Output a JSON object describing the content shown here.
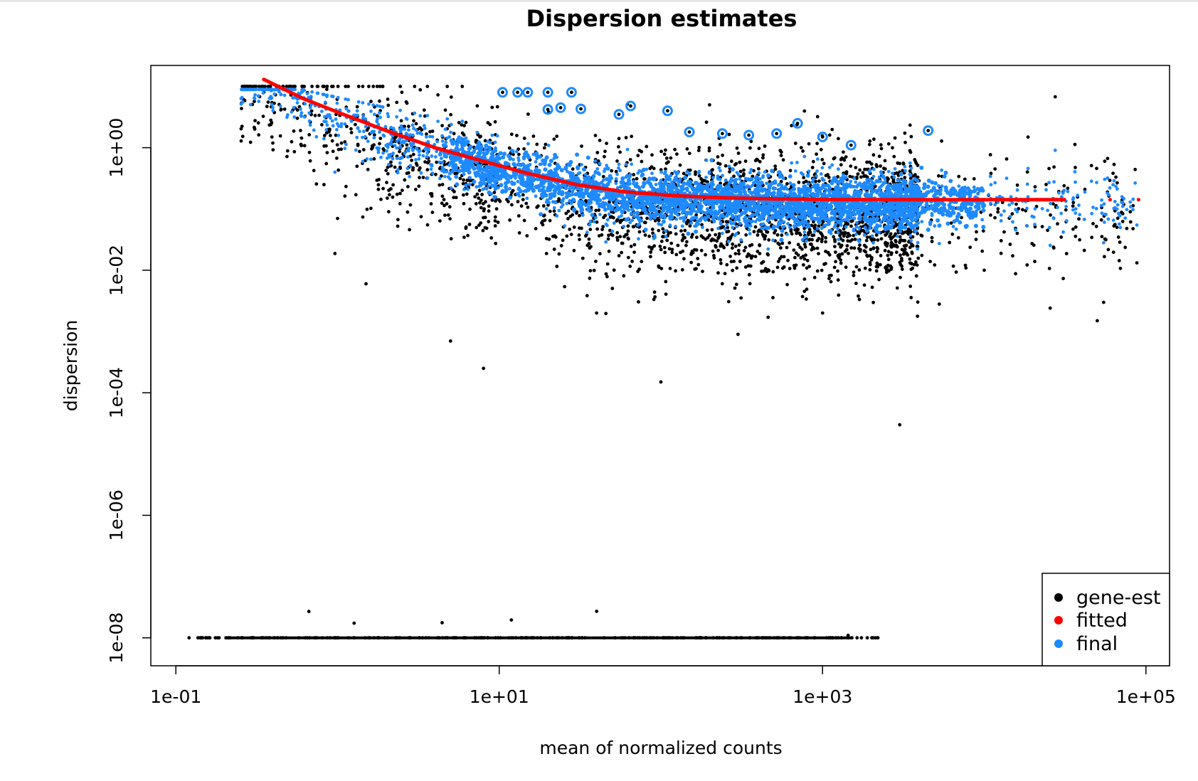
{
  "chart_data": {
    "type": "scatter",
    "title": "Dispersion estimates",
    "xlabel": "mean of normalized counts",
    "ylabel": "dispersion",
    "x_scale": "log10",
    "y_scale": "log10",
    "xlim": [
      0.07,
      140000
    ],
    "ylim": [
      3.5e-09,
      22
    ],
    "x_ticks": [
      {
        "value": 0.1,
        "label": "1e-01"
      },
      {
        "value": 10,
        "label": "1e+01"
      },
      {
        "value": 1000,
        "label": "1e+03"
      },
      {
        "value": 100000,
        "label": "1e+05"
      }
    ],
    "y_ticks": [
      {
        "value": 1e-08,
        "label": "1e-08"
      },
      {
        "value": 1e-06,
        "label": "1e-06"
      },
      {
        "value": 0.0001,
        "label": "1e-04"
      },
      {
        "value": 0.01,
        "label": "1e-02"
      },
      {
        "value": 1,
        "label": "1e+00"
      }
    ],
    "grid": false,
    "legend_position": "bottom-right",
    "series": [
      {
        "name": "gene-est",
        "color": "#000000",
        "sample_points": [
          [
            0.35,
            8
          ],
          [
            1.0,
            0.07
          ],
          [
            1.5,
            0.006
          ],
          [
            5,
            0.0007
          ],
          [
            8,
            0.00025
          ],
          [
            40,
            0.002
          ],
          [
            100,
            0.00015
          ],
          [
            300,
            0.0009
          ],
          [
            1000,
            0.002
          ],
          [
            3000,
            3e-05
          ],
          [
            10000,
            0.01
          ],
          [
            50000,
            0.0015
          ],
          [
            2.5,
            8
          ],
          [
            200,
            5
          ]
        ]
      },
      {
        "name": "fitted",
        "color": "#ff0000",
        "points": [
          [
            0.35,
            13
          ],
          [
            0.6,
            6.5
          ],
          [
            1,
            3.8
          ],
          [
            2,
            1.9
          ],
          [
            4,
            1.0
          ],
          [
            8,
            0.6
          ],
          [
            15,
            0.38
          ],
          [
            30,
            0.25
          ],
          [
            60,
            0.19
          ],
          [
            120,
            0.165
          ],
          [
            250,
            0.152
          ],
          [
            500,
            0.146
          ],
          [
            1000,
            0.143
          ],
          [
            2000,
            0.142
          ],
          [
            5000,
            0.142
          ],
          [
            10000,
            0.142
          ],
          [
            30000,
            0.142
          ],
          [
            60000,
            0.142
          ],
          [
            90000,
            0.142
          ]
        ]
      },
      {
        "name": "final",
        "color": "#1e8aff",
        "outliers": [
          [
            10.5,
            8
          ],
          [
            13,
            8
          ],
          [
            15,
            8
          ],
          [
            20,
            8
          ],
          [
            28,
            8
          ],
          [
            20,
            4.2
          ],
          [
            24,
            4.5
          ],
          [
            32,
            4.3
          ],
          [
            55,
            3.5
          ],
          [
            65,
            4.8
          ],
          [
            110,
            4.0
          ],
          [
            150,
            1.8
          ],
          [
            240,
            1.7
          ],
          [
            350,
            1.6
          ],
          [
            520,
            1.7
          ],
          [
            700,
            2.5
          ],
          [
            1000,
            1.5
          ],
          [
            1500,
            1.1
          ],
          [
            4500,
            1.9
          ]
        ]
      }
    ],
    "legend": [
      "gene-est",
      "fitted",
      "final"
    ]
  }
}
